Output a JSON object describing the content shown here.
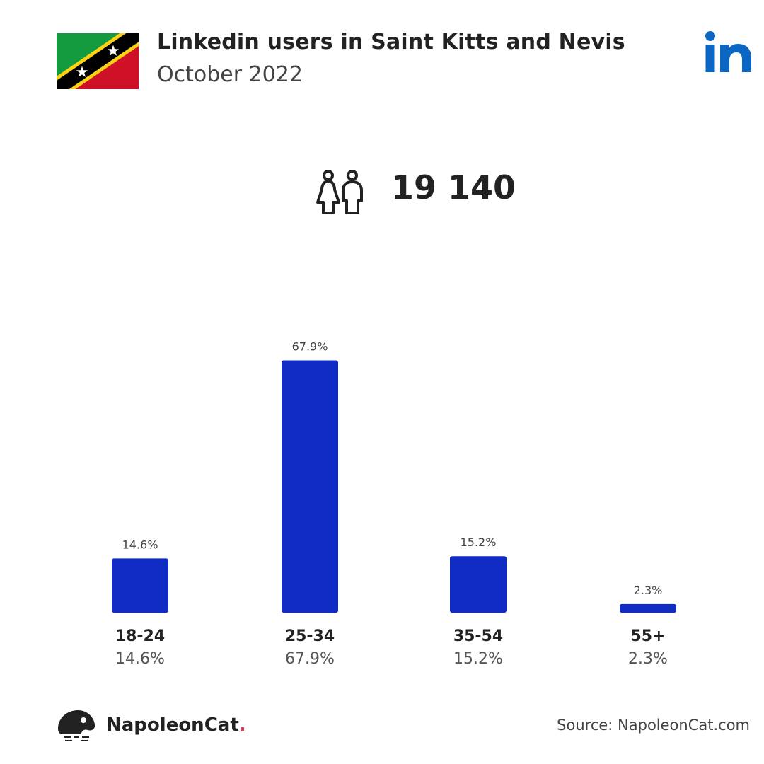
{
  "header": {
    "title": "Linkedin users in Saint Kitts and Nevis",
    "subtitle": "October 2022"
  },
  "summary": {
    "total_users": "19 140"
  },
  "chart_data": {
    "type": "bar",
    "categories": [
      "18-24",
      "25-34",
      "35-54",
      "55+"
    ],
    "values": [
      14.6,
      67.9,
      15.2,
      2.3
    ],
    "value_labels": [
      "14.6%",
      "67.9%",
      "15.2%",
      "2.3%"
    ],
    "bar_color": "#102cc4"
  },
  "footer": {
    "brand": "NapoleonCat",
    "brand_dot": ".",
    "source": "Source: NapoleonCat.com"
  },
  "colors": {
    "brand_dot": "#e8334a",
    "linkedin_blue": "#0a66c2"
  }
}
